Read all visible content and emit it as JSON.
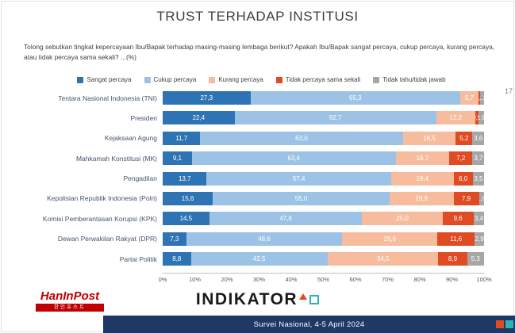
{
  "slide": {
    "title": "TRUST TERHADAP INSTITUSI",
    "question": "Tolong sebutkan tingkat kepercayaan Ibu/Bapak terhadap masing-masing lembaga berikut? Apakah Ibu/Bapak sangat percaya, cukup percaya, kurang percaya, atau tidak percaya sama sekali? ...(%)",
    "page_number": "17",
    "footer_text": "Survei Nasional, 4-5 April 2024"
  },
  "colors": {
    "sangat_percaya": "#2E74B5",
    "cukup_percaya": "#9CC3E5",
    "kurang_percaya": "#F6BC9D",
    "tidak_percaya": "#E04B23",
    "tidak_tahu": "#A6A6A6",
    "footer_navy": "#203864",
    "accent_red": "#E04B23",
    "accent_teal": "#2BB5B5"
  },
  "logos": {
    "hanin_title": "HanInPost",
    "hanin_sub": "한인포스트",
    "indikator": "INDIKATOR"
  },
  "chart_data": {
    "type": "bar",
    "subtype": "horizontal-stacked",
    "title": "TRUST TERHADAP INSTITUSI",
    "xlabel": "",
    "ylabel": "",
    "xlim": [
      0,
      100
    ],
    "grid": false,
    "legend_position": "top",
    "categories": [
      "Tentara Nasional Indonesia (TNI)",
      "Presiden",
      "Kejaksaan Agung",
      "Mahkamah Konstitusi (MK)",
      "Pengadilan",
      "Kepolisian Republik Indonesia (Polri)",
      "Komisi Pemberantasan Korupsi (KPK)",
      "Dewan Perwakilan Rakyat (DPR)",
      "Partai Politik"
    ],
    "series": [
      {
        "name": "Sangat percaya",
        "color": "#2E74B5",
        "values": [
          27.3,
          22.4,
          11.7,
          9.1,
          13.7,
          15.6,
          14.5,
          7.3,
          8.8
        ]
      },
      {
        "name": "Cukup percaya",
        "color": "#9CC3E5",
        "values": [
          65.3,
          62.7,
          63.0,
          63.4,
          57.4,
          55.0,
          47.6,
          48.6,
          42.5
        ]
      },
      {
        "name": "Kurang percaya",
        "color": "#F6BC9D",
        "values": [
          5.7,
          12.2,
          16.5,
          16.7,
          19.4,
          19.9,
          25.0,
          29.6,
          34.5
        ]
      },
      {
        "name": "Tidak percaya sama sekali",
        "color": "#E04B23",
        "values": [
          0.5,
          0.9,
          5.2,
          7.2,
          6.0,
          7.9,
          9.6,
          11.6,
          8.9
        ]
      },
      {
        "name": "Tidak tahu/tidak jawab",
        "color": "#A6A6A6",
        "values": [
          1.2,
          1.8,
          3.6,
          3.7,
          3.5,
          1.6,
          3.4,
          2.9,
          5.3
        ]
      }
    ],
    "xticks": [
      "0%",
      "10%",
      "20%",
      "30%",
      "40%",
      "50%",
      "60%",
      "70%",
      "80%",
      "90%",
      "100%"
    ]
  }
}
